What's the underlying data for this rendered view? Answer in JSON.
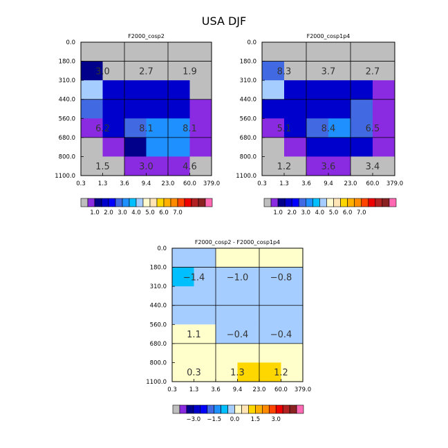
{
  "title": "USA DJF",
  "colors": {
    "fill_palette": [
      "#bebebe",
      "#8a2be2",
      "#00008b",
      "#0000cd",
      "#0000ff",
      "#4169e1",
      "#1e90ff",
      "#00bfff",
      "#a6cdff",
      "#fffacd",
      "#ffe4b5",
      "#ffd700",
      "#ffb000",
      "#ff8c00",
      "#ff4500",
      "#ee0000",
      "#b22222",
      "#8b2222",
      "#ff69b4"
    ],
    "missing": "#bebebe",
    "positive_light": "#ffffcc",
    "negative_light": "#a6cdff"
  },
  "chart_data": [
    {
      "type": "heatmap",
      "title": "F2000_cosp2",
      "xlabel": "",
      "ylabel": "",
      "x_ticks": [
        "0.3",
        "1.3",
        "3.6",
        "9.4",
        "23.0",
        "60.0",
        "379.0"
      ],
      "y_ticks": [
        "0.0",
        "180.0",
        "310.0",
        "440.0",
        "560.0",
        "680.0",
        "800.0",
        "1100.0"
      ],
      "cells": [
        [
          "missing",
          "missing",
          "missing",
          "missing",
          "missing",
          "missing"
        ],
        [
          1.0,
          "missing",
          "missing",
          "missing",
          "missing",
          "missing"
        ],
        [
          3.5,
          1.5,
          1.3,
          1.3,
          1.3,
          "missing"
        ],
        [
          2.0,
          1.5,
          1.5,
          1.5,
          1.5,
          0.5
        ],
        [
          0.5,
          1.2,
          2.0,
          2.5,
          2.5,
          0.5
        ],
        [
          "missing",
          0.5,
          1.0,
          2.5,
          2.5,
          0.5
        ],
        [
          "missing",
          "missing",
          0.5,
          0.5,
          0.5,
          "missing"
        ]
      ],
      "group_labels": [
        {
          "text": "3.0",
          "row": 1,
          "col": 0
        },
        {
          "text": "2.7",
          "row": 1,
          "col": 2
        },
        {
          "text": "1.9",
          "row": 1,
          "col": 4
        },
        {
          "text": "6.2",
          "row": 4,
          "col": 0
        },
        {
          "text": "8.1",
          "row": 4,
          "col": 2
        },
        {
          "text": "8.1",
          "row": 4,
          "col": 4
        },
        {
          "text": "1.5",
          "row": 6,
          "col": 0
        },
        {
          "text": "3.0",
          "row": 6,
          "col": 2
        },
        {
          "text": "4.6",
          "row": 6,
          "col": 4
        }
      ],
      "colorbar": {
        "ticks": [
          "1.0",
          "2.0",
          "3.0",
          "4.0",
          "5.0",
          "6.0",
          "7.0"
        ]
      }
    },
    {
      "type": "heatmap",
      "title": "F2000_cosp1p4",
      "xlabel": "",
      "ylabel": "",
      "x_ticks": [
        "0.3",
        "1.3",
        "3.6",
        "9.4",
        "23.0",
        "60.0",
        "379.0"
      ],
      "y_ticks": [
        "0.0",
        "180.0",
        "310.0",
        "440.0",
        "560.0",
        "680.0",
        "800.0",
        "1100.0"
      ],
      "cells": [
        [
          "missing",
          "missing",
          "missing",
          "missing",
          "missing",
          "missing"
        ],
        [
          2.0,
          "missing",
          "missing",
          "missing",
          "missing",
          "missing"
        ],
        [
          3.5,
          1.5,
          1.5,
          1.3,
          1.5,
          0.5
        ],
        [
          1.3,
          1.3,
          1.3,
          1.5,
          2.0,
          0.5
        ],
        [
          0.5,
          1.3,
          2.0,
          2.5,
          2.0,
          0.5
        ],
        [
          "missing",
          0.5,
          1.3,
          1.5,
          1.3,
          0.5
        ],
        [
          "missing",
          "missing",
          0.5,
          0.5,
          "missing",
          "missing"
        ]
      ],
      "group_labels": [
        {
          "text": "8.3",
          "row": 1,
          "col": 0
        },
        {
          "text": "3.7",
          "row": 1,
          "col": 2
        },
        {
          "text": "2.7",
          "row": 1,
          "col": 4
        },
        {
          "text": "5.1",
          "row": 4,
          "col": 0
        },
        {
          "text": "8.4",
          "row": 4,
          "col": 2
        },
        {
          "text": "6.5",
          "row": 4,
          "col": 4
        },
        {
          "text": "1.2",
          "row": 6,
          "col": 0
        },
        {
          "text": "3.6",
          "row": 6,
          "col": 2
        },
        {
          "text": "3.4",
          "row": 6,
          "col": 4
        }
      ],
      "colorbar": {
        "ticks": [
          "1.0",
          "2.0",
          "3.0",
          "4.0",
          "5.0",
          "6.0",
          "7.0"
        ]
      }
    },
    {
      "type": "heatmap",
      "title": "F2000_cosp2 - F2000_cosp1p4",
      "xlabel": "",
      "ylabel": "",
      "x_ticks": [
        "0.3",
        "1.3",
        "3.6",
        "9.4",
        "23.0",
        "60.0",
        "379.0"
      ],
      "y_ticks": [
        "0.0",
        "180.0",
        "310.0",
        "440.0",
        "560.0",
        "680.0",
        "800.0",
        "1100.0"
      ],
      "cells": [
        [
          -0.4,
          -0.4,
          0.3,
          0.3,
          0.3,
          0.3
        ],
        [
          -1.0,
          -0.4,
          -0.4,
          -0.4,
          -0.4,
          -0.4
        ],
        [
          -0.4,
          -0.4,
          -0.4,
          -0.4,
          -0.4,
          -0.4
        ],
        [
          -0.4,
          -0.4,
          -0.4,
          -0.4,
          -0.4,
          -0.4
        ],
        [
          0.3,
          0.3,
          -0.4,
          -0.4,
          -0.4,
          -0.4
        ],
        [
          0.3,
          0.3,
          0.3,
          0.3,
          0.3,
          0.3
        ],
        [
          0.3,
          0.3,
          0.3,
          0.8,
          0.8,
          0.3
        ]
      ],
      "group_labels": [
        {
          "text": "-1.4",
          "row": 1,
          "col": 0
        },
        {
          "text": "-1.0",
          "row": 1,
          "col": 2
        },
        {
          "text": "-0.8",
          "row": 1,
          "col": 4
        },
        {
          "text": "1.1",
          "row": 4,
          "col": 0
        },
        {
          "text": "-0.4",
          "row": 4,
          "col": 2
        },
        {
          "text": "-0.4",
          "row": 4,
          "col": 4
        },
        {
          "text": "0.3",
          "row": 6,
          "col": 0
        },
        {
          "text": "1.3",
          "row": 6,
          "col": 2
        },
        {
          "text": "1.2",
          "row": 6,
          "col": 4
        }
      ],
      "colorbar": {
        "ticks": [
          "-3.0",
          "-1.5",
          "0.0",
          "1.5",
          "3.0"
        ]
      }
    }
  ]
}
